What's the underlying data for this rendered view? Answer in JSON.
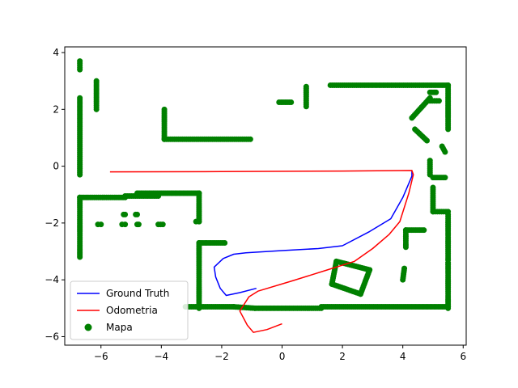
{
  "chart_data": {
    "type": "line",
    "title": "",
    "xlabel": "",
    "ylabel": "",
    "xlim": [
      -7.2,
      6.1
    ],
    "ylim": [
      -6.3,
      4.2
    ],
    "xticks": [
      -6,
      -4,
      -2,
      0,
      2,
      4,
      6
    ],
    "yticks": [
      -6,
      -4,
      -2,
      0,
      2,
      4
    ],
    "xtick_labels": [
      "−6",
      "−4",
      "−2",
      "0",
      "2",
      "4",
      "6"
    ],
    "ytick_labels": [
      "−6",
      "−4",
      "−2",
      "0",
      "2",
      "4"
    ],
    "grid": false,
    "legend_position": "lower-left",
    "series": [
      {
        "name": "Ground Truth",
        "kind": "line",
        "color": "#0000ff",
        "points": [
          [
            -0.85,
            -4.3
          ],
          [
            -1.4,
            -4.45
          ],
          [
            -1.85,
            -4.55
          ],
          [
            -2.05,
            -4.3
          ],
          [
            -2.2,
            -3.9
          ],
          [
            -2.25,
            -3.55
          ],
          [
            -1.95,
            -3.25
          ],
          [
            -1.6,
            -3.1
          ],
          [
            -1.2,
            -3.05
          ],
          [
            0.0,
            -2.97
          ],
          [
            1.2,
            -2.9
          ],
          [
            2.0,
            -2.8
          ],
          [
            2.9,
            -2.3
          ],
          [
            3.6,
            -1.85
          ],
          [
            4.0,
            -1.1
          ],
          [
            4.3,
            -0.35
          ],
          [
            4.3,
            -0.15
          ]
        ]
      },
      {
        "name": "Odometria",
        "kind": "line",
        "color": "#ff0000",
        "points": [
          [
            0.0,
            -5.55
          ],
          [
            -0.5,
            -5.75
          ],
          [
            -0.95,
            -5.85
          ],
          [
            -1.15,
            -5.6
          ],
          [
            -1.4,
            -5.1
          ],
          [
            -1.1,
            -4.6
          ],
          [
            -0.8,
            -4.4
          ],
          [
            0.3,
            -4.05
          ],
          [
            1.5,
            -3.65
          ],
          [
            2.4,
            -3.35
          ],
          [
            3.0,
            -2.9
          ],
          [
            3.55,
            -2.4
          ],
          [
            3.9,
            -1.95
          ],
          [
            4.2,
            -0.95
          ],
          [
            4.35,
            -0.3
          ],
          [
            4.3,
            -0.15
          ],
          [
            2.0,
            -0.17
          ],
          [
            -2.0,
            -0.19
          ],
          [
            -5.7,
            -0.2
          ]
        ]
      },
      {
        "name": "Mapa",
        "kind": "scatter",
        "color": "#008000",
        "segments": [
          [
            [
              -6.7,
              3.7
            ],
            [
              -6.7,
              3.4
            ]
          ],
          [
            [
              -6.7,
              2.4
            ],
            [
              -6.7,
              -0.3
            ]
          ],
          [
            [
              -6.15,
              3.0
            ],
            [
              -6.15,
              2.0
            ]
          ],
          [
            [
              -6.7,
              -1.1
            ],
            [
              -6.7,
              -3.2
            ]
          ],
          [
            [
              -6.7,
              -1.1
            ],
            [
              -5.2,
              -1.1
            ]
          ],
          [
            [
              -5.2,
              -1.05
            ],
            [
              -4.1,
              -1.05
            ]
          ],
          [
            [
              -4.8,
              -0.95
            ],
            [
              -2.75,
              -0.95
            ]
          ],
          [
            [
              -2.75,
              -0.95
            ],
            [
              -2.75,
              -1.95
            ]
          ],
          [
            [
              -2.75,
              -1.95
            ],
            [
              -2.85,
              -1.95
            ]
          ],
          [
            [
              -6.1,
              -2.05
            ],
            [
              -6.0,
              -2.05
            ]
          ],
          [
            [
              -5.3,
              -2.05
            ],
            [
              -5.2,
              -2.05
            ]
          ],
          [
            [
              -4.8,
              -2.05
            ],
            [
              -4.75,
              -2.05
            ]
          ],
          [
            [
              -4.1,
              -2.05
            ],
            [
              -3.95,
              -2.05
            ]
          ],
          [
            [
              -5.25,
              -1.7
            ],
            [
              -5.2,
              -1.7
            ]
          ],
          [
            [
              -4.85,
              -1.7
            ],
            [
              -4.8,
              -1.7
            ]
          ],
          [
            [
              -3.9,
              2.0
            ],
            [
              -3.9,
              0.95
            ]
          ],
          [
            [
              -3.9,
              0.95
            ],
            [
              -1.05,
              0.95
            ]
          ],
          [
            [
              -0.1,
              2.25
            ],
            [
              0.3,
              2.25
            ]
          ],
          [
            [
              0.8,
              2.8
            ],
            [
              0.8,
              2.1
            ]
          ],
          [
            [
              1.6,
              2.85
            ],
            [
              5.5,
              2.85
            ]
          ],
          [
            [
              5.5,
              2.85
            ],
            [
              5.5,
              1.3
            ]
          ],
          [
            [
              4.9,
              2.6
            ],
            [
              5.1,
              2.6
            ]
          ],
          [
            [
              4.9,
              2.3
            ],
            [
              5.2,
              2.3
            ]
          ],
          [
            [
              4.3,
              1.7
            ],
            [
              4.9,
              2.4
            ]
          ],
          [
            [
              4.4,
              1.3
            ],
            [
              4.8,
              0.9
            ]
          ],
          [
            [
              5.3,
              0.7
            ],
            [
              5.4,
              0.5
            ]
          ],
          [
            [
              4.9,
              0.2
            ],
            [
              4.9,
              -0.3
            ]
          ],
          [
            [
              5.0,
              -0.4
            ],
            [
              5.4,
              -0.4
            ]
          ],
          [
            [
              5.0,
              -0.75
            ],
            [
              5.0,
              -1.6
            ]
          ],
          [
            [
              5.0,
              -1.6
            ],
            [
              5.5,
              -1.6
            ]
          ],
          [
            [
              5.5,
              -1.7
            ],
            [
              5.5,
              -3.3
            ]
          ],
          [
            [
              4.1,
              -2.25
            ],
            [
              4.7,
              -2.25
            ]
          ],
          [
            [
              4.1,
              -2.25
            ],
            [
              4.1,
              -2.85
            ]
          ],
          [
            [
              4.05,
              -3.6
            ],
            [
              4.0,
              -4.0
            ]
          ],
          [
            [
              5.5,
              -3.4
            ],
            [
              5.5,
              -5.0
            ]
          ],
          [
            [
              -2.75,
              -2.7
            ],
            [
              -1.9,
              -2.7
            ]
          ],
          [
            [
              -2.75,
              -2.7
            ],
            [
              -2.75,
              -5.0
            ]
          ],
          [
            [
              -3.2,
              -4.95
            ],
            [
              -1.6,
              -4.95
            ]
          ],
          [
            [
              -1.6,
              -4.95
            ],
            [
              -0.9,
              -5.0
            ]
          ],
          [
            [
              -0.9,
              -5.0
            ],
            [
              1.3,
              -5.0
            ]
          ],
          [
            [
              1.3,
              -4.95
            ],
            [
              5.5,
              -4.95
            ]
          ],
          [
            [
              1.8,
              -3.35
            ],
            [
              2.9,
              -3.65
            ]
          ],
          [
            [
              2.9,
              -3.65
            ],
            [
              2.6,
              -4.5
            ]
          ],
          [
            [
              2.6,
              -4.5
            ],
            [
              1.65,
              -4.15
            ]
          ],
          [
            [
              1.65,
              -4.15
            ],
            [
              1.8,
              -3.35
            ]
          ]
        ]
      }
    ]
  }
}
